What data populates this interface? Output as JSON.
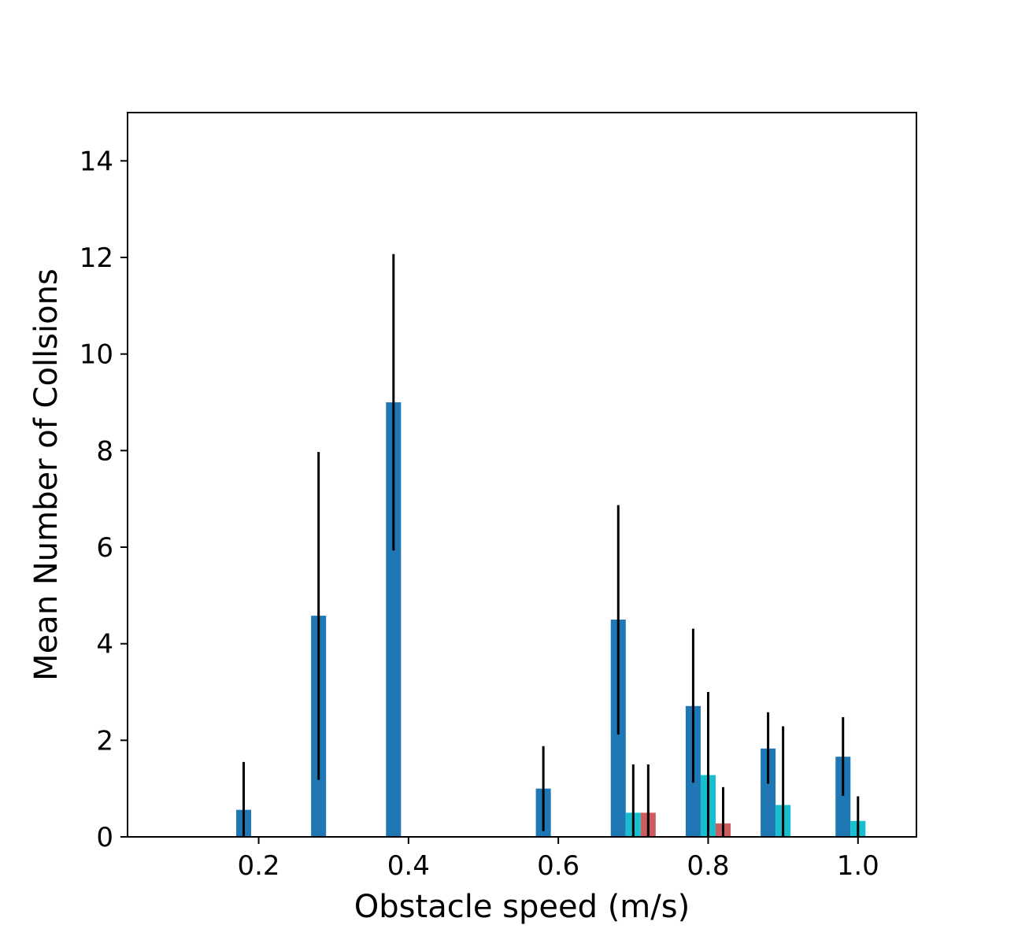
{
  "chart_data": {
    "type": "bar",
    "title": "",
    "xlabel": "Obstacle speed (m/s)",
    "ylabel": "Mean Number of Collsions",
    "xlim": [
      0.025,
      1.078
    ],
    "ylim": [
      0,
      15
    ],
    "xticks": [
      0.2,
      0.4,
      0.6,
      0.8,
      1.0
    ],
    "xtick_labels": [
      "0.2",
      "0.4",
      "0.6",
      "0.8",
      "1.0"
    ],
    "yticks": [
      0,
      2,
      4,
      6,
      8,
      10,
      12,
      14
    ],
    "ytick_labels": [
      "0",
      "2",
      "4",
      "6",
      "8",
      "10",
      "12",
      "14"
    ],
    "bar_width": 0.02,
    "grid": false,
    "legend": "none",
    "series": [
      {
        "color": "#1f77b4",
        "x": [
          0.18,
          0.28,
          0.38,
          0.58,
          0.68,
          0.78,
          0.88,
          0.98
        ],
        "values": [
          0.56,
          4.58,
          9.0,
          1.0,
          4.5,
          2.71,
          1.83,
          1.66
        ],
        "err_low": [
          0.0,
          1.18,
          5.93,
          0.12,
          2.12,
          1.12,
          1.1,
          0.85
        ],
        "err_high": [
          1.55,
          7.97,
          12.07,
          1.88,
          6.87,
          4.31,
          2.58,
          2.48
        ]
      },
      {
        "color": "#17becf",
        "x": [
          0.7,
          0.8,
          0.9,
          1.0
        ],
        "values": [
          0.5,
          1.28,
          0.66,
          0.33
        ],
        "err_low": [
          0.0,
          0.0,
          0.0,
          0.0
        ],
        "err_high": [
          1.5,
          3.0,
          2.29,
          0.84
        ]
      },
      {
        "color": "#cd5c5c",
        "x": [
          0.72,
          0.82
        ],
        "values": [
          0.5,
          0.28
        ],
        "err_low": [
          0.0,
          0.0
        ],
        "err_high": [
          1.5,
          1.03
        ]
      }
    ],
    "errorbar_color": "#000000"
  }
}
